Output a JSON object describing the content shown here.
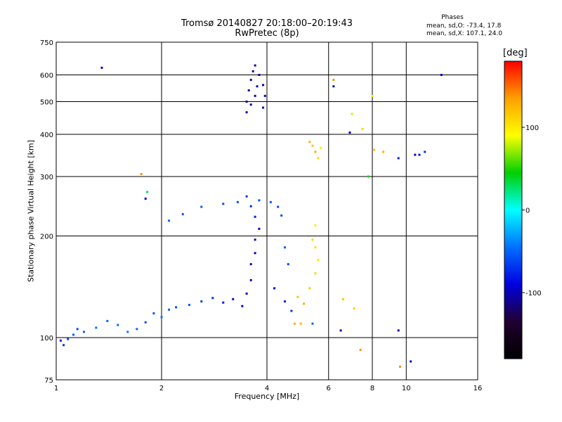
{
  "chart_data": {
    "type": "scatter",
    "title": "Tromsø 20140827 20:18:00–20:19:43",
    "subtitle": "RwPretec (8p)",
    "xlabel": "Frequency [MHz]",
    "ylabel": "Stationary phase Virtual Height [km]",
    "x_scale": "log",
    "y_scale": "log",
    "xlim": [
      1,
      16
    ],
    "ylim": [
      75,
      750
    ],
    "x_ticks": [
      1,
      2,
      4,
      6,
      8,
      10,
      16
    ],
    "y_ticks": [
      75,
      100,
      200,
      300,
      400,
      500,
      600,
      750
    ],
    "grid": true,
    "stats": {
      "header": "Phases",
      "line1": "mean, sd,O: -73.4, 17.8",
      "line2": "mean, sd,X: 107.1, 24.0"
    },
    "colorbar": {
      "label": "[deg]",
      "range": [
        -180,
        180
      ],
      "ticks": [
        100,
        0,
        -100
      ],
      "tick_labels": [
        "100",
        "0",
        "-100"
      ],
      "colors": [
        "#ff0000",
        "#ffa000",
        "#ffff00",
        "#00d000",
        "#00ffff",
        "#0070ff",
        "#0000e0",
        "#200030",
        "#000000"
      ]
    },
    "series": [
      {
        "points": [
          [
            1.03,
            98,
            -80
          ],
          [
            1.05,
            95,
            -70
          ],
          [
            1.08,
            99,
            -60
          ],
          [
            1.12,
            102,
            -55
          ],
          [
            1.15,
            106,
            -60
          ],
          [
            1.2,
            104,
            -50
          ],
          [
            1.3,
            107,
            -45
          ],
          [
            1.4,
            112,
            -50
          ],
          [
            1.5,
            109,
            -45
          ],
          [
            1.6,
            104,
            -40
          ],
          [
            1.7,
            106,
            -50
          ],
          [
            1.8,
            111,
            -60
          ],
          [
            1.9,
            118,
            -55
          ],
          [
            2.0,
            115,
            -45
          ],
          [
            2.1,
            121,
            -50
          ],
          [
            2.2,
            123,
            -60
          ],
          [
            2.4,
            125,
            -55
          ],
          [
            2.6,
            128,
            -65
          ],
          [
            2.8,
            131,
            -70
          ],
          [
            3.0,
            127,
            -80
          ],
          [
            3.2,
            130,
            -85
          ],
          [
            3.4,
            124,
            -90
          ],
          [
            3.5,
            135,
            -95
          ],
          [
            3.6,
            148,
            -100
          ],
          [
            3.6,
            165,
            -105
          ],
          [
            3.7,
            178,
            -100
          ],
          [
            3.7,
            195,
            -100
          ],
          [
            3.8,
            210,
            -95
          ],
          [
            3.7,
            228,
            -80
          ],
          [
            3.6,
            245,
            -75
          ],
          [
            3.5,
            262,
            -70
          ],
          [
            3.3,
            252,
            -60
          ],
          [
            3.0,
            249,
            -60
          ],
          [
            2.6,
            244,
            -55
          ],
          [
            2.3,
            232,
            -55
          ],
          [
            2.1,
            222,
            -50
          ],
          [
            3.8,
            255,
            -60
          ],
          [
            4.1,
            252,
            -55
          ],
          [
            4.3,
            244,
            -60
          ],
          [
            4.4,
            230,
            -60
          ],
          [
            4.2,
            140,
            -90
          ],
          [
            4.5,
            128,
            -80
          ],
          [
            4.7,
            120,
            -70
          ],
          [
            4.9,
            132,
            120
          ],
          [
            5.1,
            126,
            130
          ],
          [
            5.3,
            140,
            115
          ],
          [
            5.5,
            155,
            110
          ],
          [
            5.6,
            170,
            100
          ],
          [
            5.5,
            185,
            105
          ],
          [
            5.4,
            195,
            110
          ],
          [
            5.5,
            215,
            100
          ],
          [
            4.8,
            110,
            130
          ],
          [
            5.0,
            110,
            125
          ],
          [
            4.6,
            165,
            -60
          ],
          [
            4.5,
            185,
            -55
          ],
          [
            3.5,
            465,
            -100
          ],
          [
            3.5,
            500,
            -105
          ],
          [
            3.55,
            540,
            -110
          ],
          [
            3.6,
            580,
            -100
          ],
          [
            3.65,
            615,
            -105
          ],
          [
            3.7,
            640,
            -110
          ],
          [
            3.8,
            600,
            -100
          ],
          [
            3.9,
            560,
            -95
          ],
          [
            3.95,
            520,
            -90
          ],
          [
            3.9,
            480,
            -95
          ],
          [
            3.6,
            490,
            -100
          ],
          [
            3.7,
            520,
            -105
          ],
          [
            3.75,
            555,
            -100
          ],
          [
            1.35,
            630,
            -100
          ],
          [
            5.4,
            370,
            120
          ],
          [
            5.5,
            355,
            130
          ],
          [
            5.6,
            340,
            110
          ],
          [
            5.3,
            380,
            125
          ],
          [
            5.7,
            365,
            100
          ],
          [
            6.2,
            580,
            140
          ],
          [
            6.2,
            555,
            -100
          ],
          [
            7.8,
            300,
            40
          ],
          [
            8.1,
            360,
            120
          ],
          [
            8.6,
            355,
            130
          ],
          [
            9.5,
            340,
            -80
          ],
          [
            10.6,
            348,
            -90
          ],
          [
            10.9,
            348,
            -85
          ],
          [
            11.3,
            355,
            -70
          ],
          [
            12.6,
            600,
            -100
          ],
          [
            7.0,
            460,
            80
          ],
          [
            7.5,
            415,
            110
          ],
          [
            8.0,
            520,
            100
          ],
          [
            6.9,
            405,
            -100
          ],
          [
            1.75,
            305,
            140
          ],
          [
            1.82,
            270,
            30
          ],
          [
            1.8,
            258,
            -100
          ],
          [
            6.6,
            130,
            120
          ],
          [
            7.1,
            122,
            110
          ],
          [
            7.4,
            92,
            140
          ],
          [
            6.5,
            105,
            -100
          ],
          [
            5.4,
            110,
            -50
          ],
          [
            9.5,
            105,
            -100
          ],
          [
            10.3,
            85,
            -90
          ],
          [
            9.6,
            82,
            140
          ]
        ]
      }
    ]
  }
}
